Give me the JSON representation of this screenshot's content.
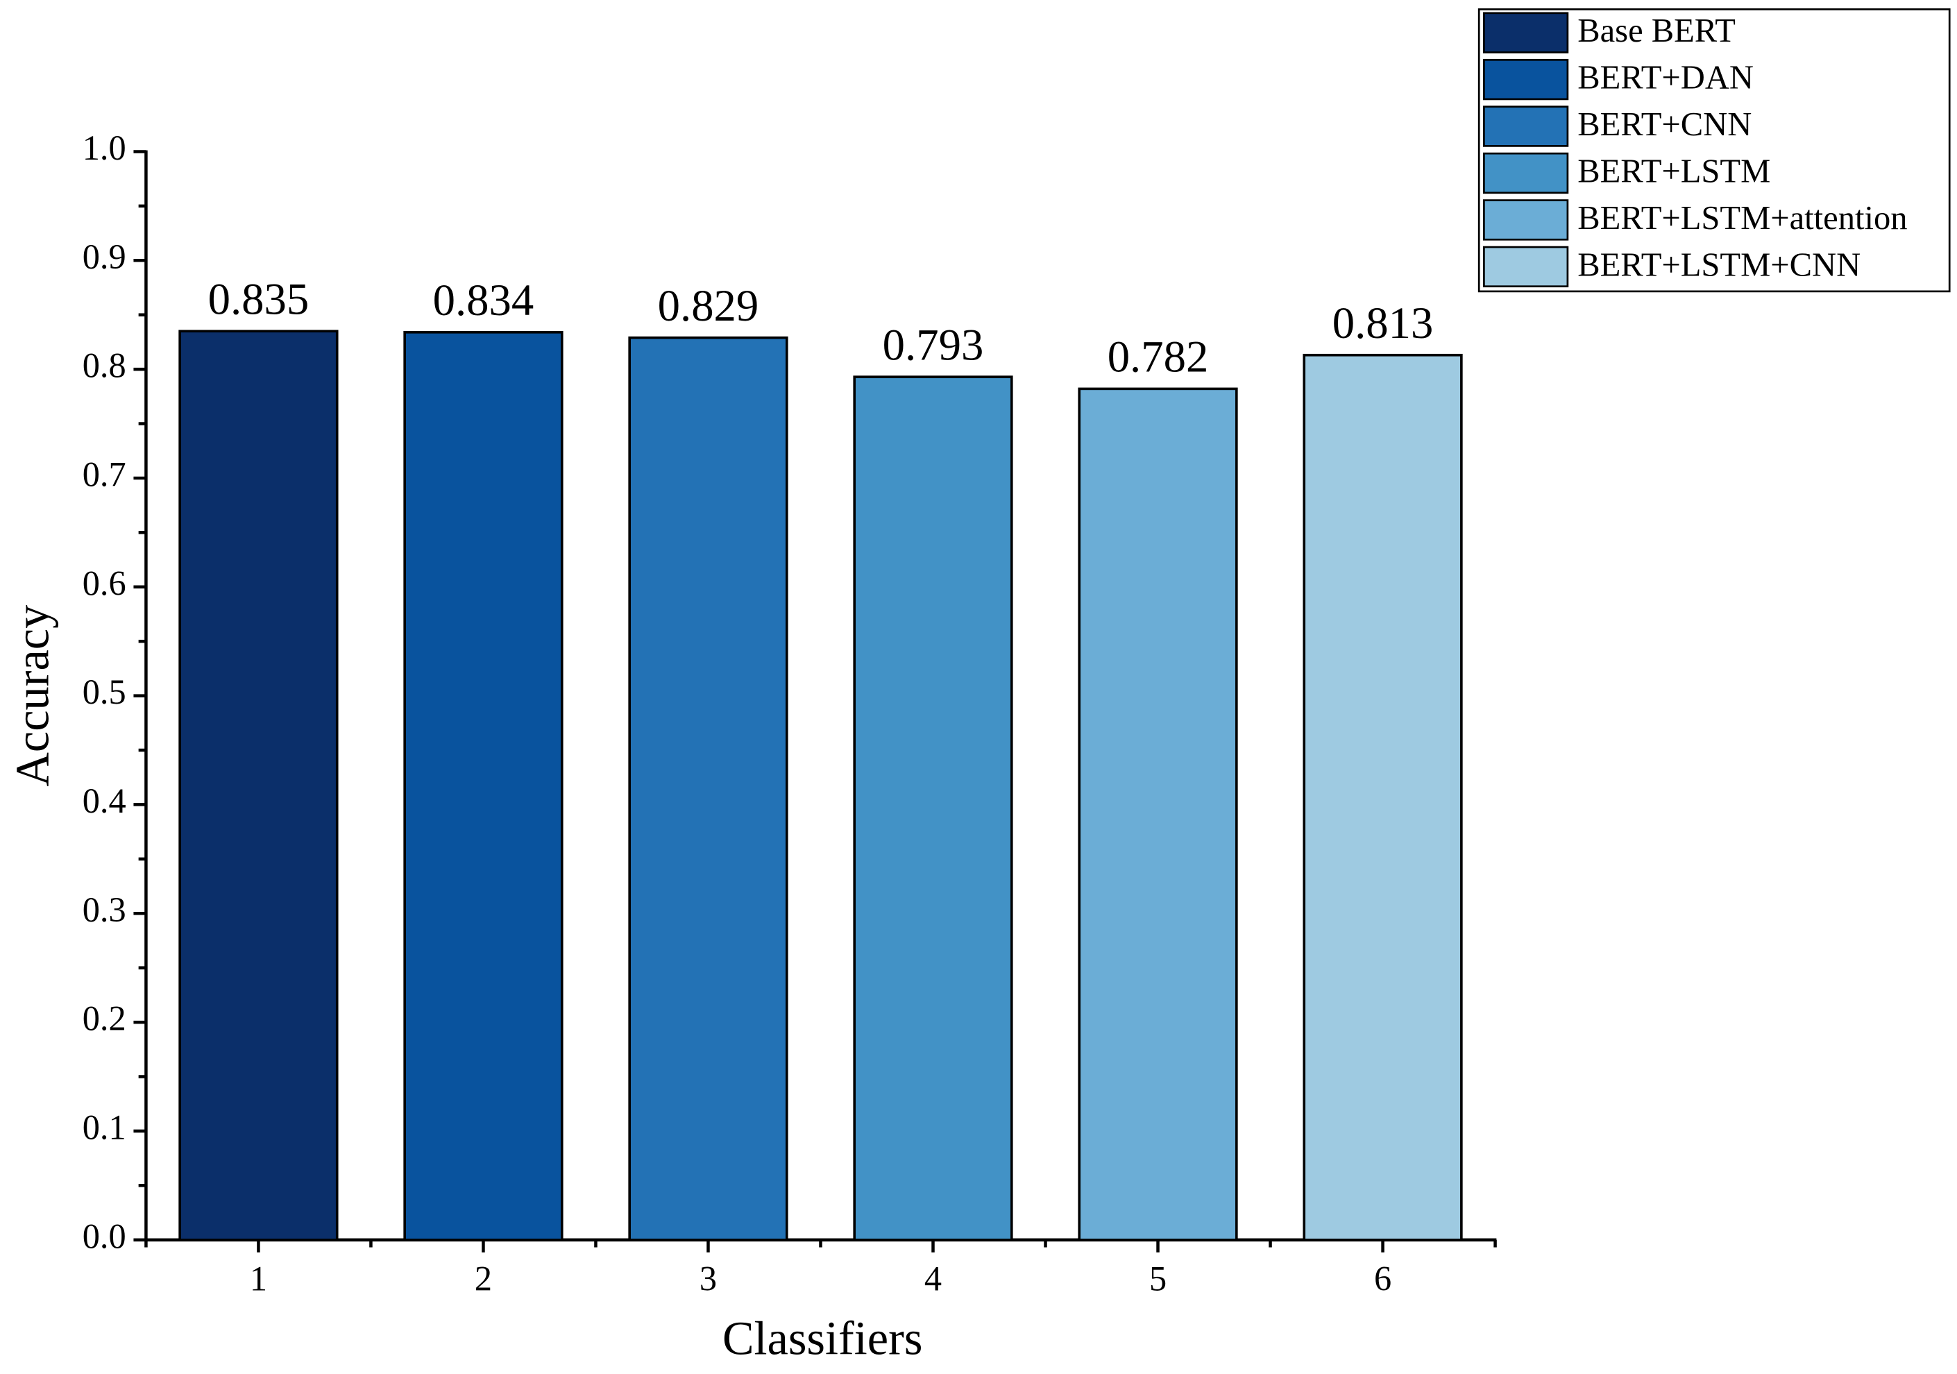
{
  "chart_data": {
    "type": "bar",
    "x_label": "Classifiers",
    "y_label": "Accuracy",
    "categories": [
      "1",
      "2",
      "3",
      "4",
      "5",
      "6"
    ],
    "series": [
      {
        "name": "Base BERT",
        "color": "#0b2f6a",
        "values": [
          0.835,
          null,
          null,
          null,
          null,
          null
        ]
      },
      {
        "name": "BERT+DAN",
        "color": "#09539e",
        "values": [
          null,
          0.834,
          null,
          null,
          null,
          null
        ]
      },
      {
        "name": "BERT+CNN",
        "color": "#2372b5",
        "values": [
          null,
          null,
          0.829,
          null,
          null,
          null
        ]
      },
      {
        "name": "BERT+LSTM",
        "color": "#4292c6",
        "values": [
          null,
          null,
          null,
          0.793,
          null,
          null
        ]
      },
      {
        "name": "BERT+LSTM+attention",
        "color": "#6badd6",
        "values": [
          null,
          null,
          null,
          null,
          0.782,
          null
        ]
      },
      {
        "name": "BERT+LSTM+CNN",
        "color": "#9ecae1",
        "values": [
          null,
          null,
          null,
          null,
          null,
          0.813
        ]
      }
    ],
    "ylim": [
      0,
      1
    ],
    "yticks": [
      {
        "value": 0,
        "label": "0.0"
      },
      0.1,
      0.2,
      0.3,
      0.4,
      0.5,
      0.6,
      0.7,
      0.8,
      0.9,
      {
        "value": 1,
        "label": "1.0"
      }
    ],
    "grid": false,
    "legend": "top-right",
    "data_labels": true
  }
}
